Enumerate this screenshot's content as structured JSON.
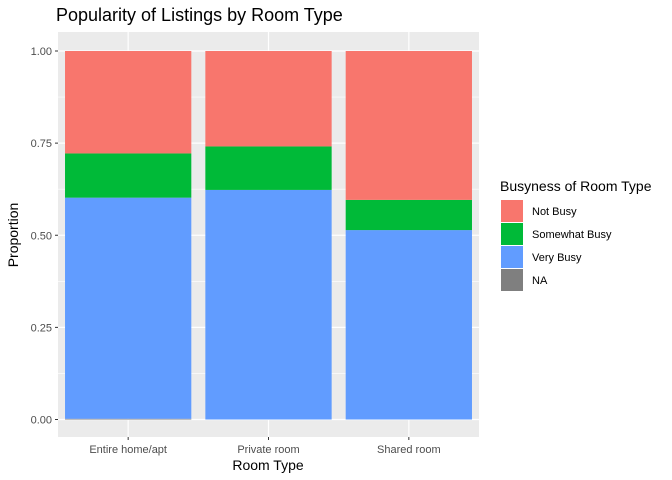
{
  "chart_data": {
    "type": "bar",
    "stacked": true,
    "title": "Popularity of Listings by Room Type",
    "xlabel": "Room Type",
    "ylabel": "Proportion",
    "ylim": [
      0,
      1
    ],
    "yticks": [
      0,
      0.25,
      0.5,
      0.75,
      1
    ],
    "ytick_labels": [
      "0.00",
      "0.25",
      "0.50",
      "0.75",
      "1.00"
    ],
    "categories": [
      "Entire home/apt",
      "Private room",
      "Shared room"
    ],
    "series": [
      {
        "name": "NA",
        "color": "#7f7f7f",
        "values": [
          0.002,
          0.0,
          0.0
        ]
      },
      {
        "name": "Very Busy",
        "color": "#619cff",
        "values": [
          0.6,
          0.623,
          0.514
        ]
      },
      {
        "name": "Somewhat Busy",
        "color": "#00ba38",
        "values": [
          0.12,
          0.118,
          0.082
        ]
      },
      {
        "name": "Not Busy",
        "color": "#f8766d",
        "values": [
          0.278,
          0.259,
          0.404
        ]
      }
    ],
    "legend": {
      "title": "Busyness of Room Type",
      "position": "right",
      "order": [
        "Not Busy",
        "Somewhat Busy",
        "Very Busy",
        "NA"
      ]
    },
    "panel_background": "#ebebeb",
    "grid_color": "#ffffff"
  }
}
